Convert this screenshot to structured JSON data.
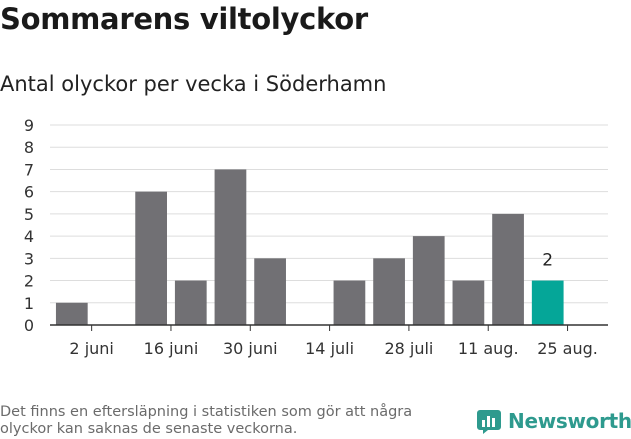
{
  "header": {
    "title": "Sommarens viltolyckor",
    "subtitle": "Antal olyckor per vecka i Söderhamn"
  },
  "footnote": "Det finns en eftersläpning i statistiken som gör att några olyckor kan saknas de senaste veckorna.",
  "brand": {
    "name": "Newsworthy",
    "color": "#2e9a8e"
  },
  "colors": {
    "bar": "#717074",
    "highlight": "#05a698",
    "grid": "#dddddd",
    "axis": "#333333"
  },
  "chart_data": {
    "type": "bar",
    "title": "",
    "xlabel": "",
    "ylabel": "",
    "ylim": [
      0,
      9
    ],
    "yticks": [
      0,
      1,
      2,
      3,
      4,
      5,
      6,
      7,
      8,
      9
    ],
    "grid": true,
    "weeks": 13,
    "values": [
      1,
      0,
      6,
      2,
      7,
      3,
      0,
      2,
      3,
      4,
      2,
      5,
      2
    ],
    "highlight_index": 12,
    "data_labels": [
      {
        "index": 12,
        "text": "2"
      }
    ],
    "xticks": [
      {
        "index": 0.5,
        "label": "2 juni"
      },
      {
        "index": 2.5,
        "label": "16 juni"
      },
      {
        "index": 4.5,
        "label": "30 juni"
      },
      {
        "index": 6.5,
        "label": "14 juli"
      },
      {
        "index": 8.5,
        "label": "28 juli"
      },
      {
        "index": 10.5,
        "label": "11 aug."
      },
      {
        "index": 12.5,
        "label": "25 aug."
      }
    ]
  }
}
